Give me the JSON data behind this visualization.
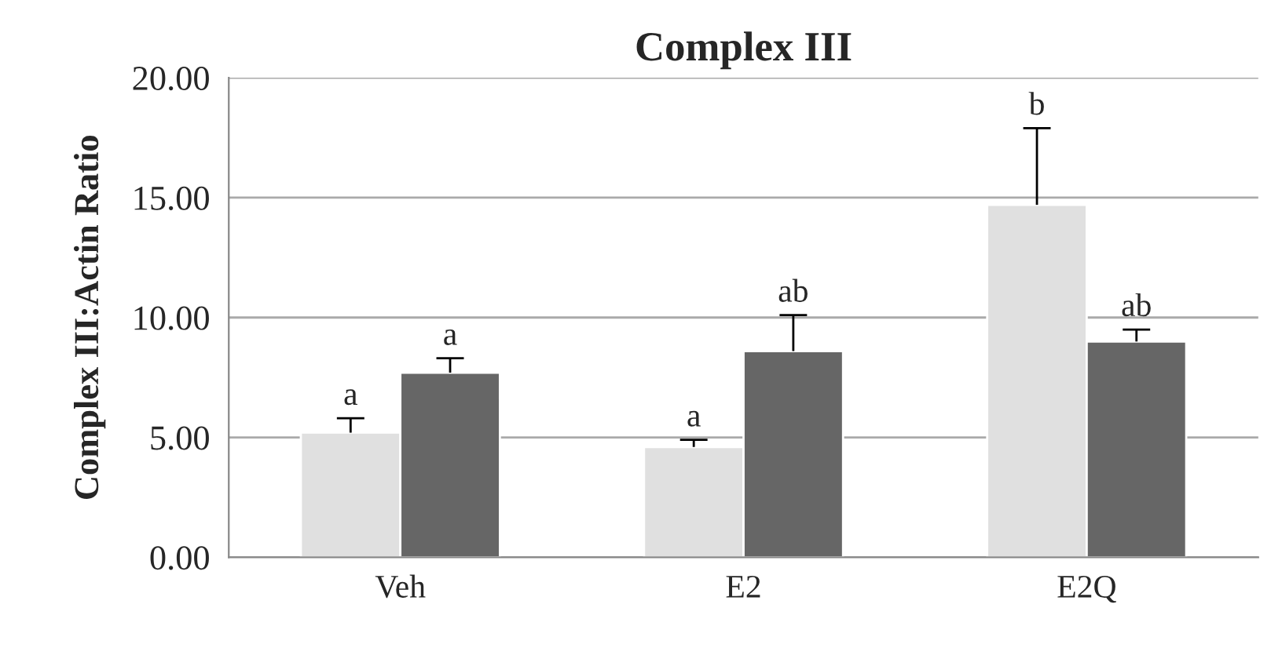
{
  "chart_data": {
    "type": "bar",
    "title": "Complex III",
    "ylabel": "Complex III:Actin Ratio",
    "categories": [
      "Veh",
      "E2",
      "E2Q"
    ],
    "series": [
      {
        "color": "#e0e0e0",
        "values": [
          5.2,
          4.6,
          14.7
        ],
        "errors": [
          [
            5.2,
            5.8
          ],
          [
            4.6,
            4.9
          ],
          [
            14.7,
            17.9
          ]
        ],
        "value_labels": [
          "a",
          "a",
          "b"
        ]
      },
      {
        "color": "#666666",
        "values": [
          7.7,
          8.6,
          9.0
        ],
        "errors": [
          [
            7.7,
            8.3
          ],
          [
            8.6,
            10.1
          ],
          [
            9.0,
            9.5
          ]
        ],
        "value_labels": [
          "a",
          "ab",
          "ab"
        ]
      }
    ],
    "ylim": [
      0,
      20
    ],
    "yticks": [
      {
        "value": 0,
        "label": "0.00"
      },
      {
        "value": 5,
        "label": "5.00"
      },
      {
        "value": 10,
        "label": "10.00"
      },
      {
        "value": 15,
        "label": "15.00"
      },
      {
        "value": 20,
        "label": "20.00"
      }
    ],
    "grid": "y"
  }
}
